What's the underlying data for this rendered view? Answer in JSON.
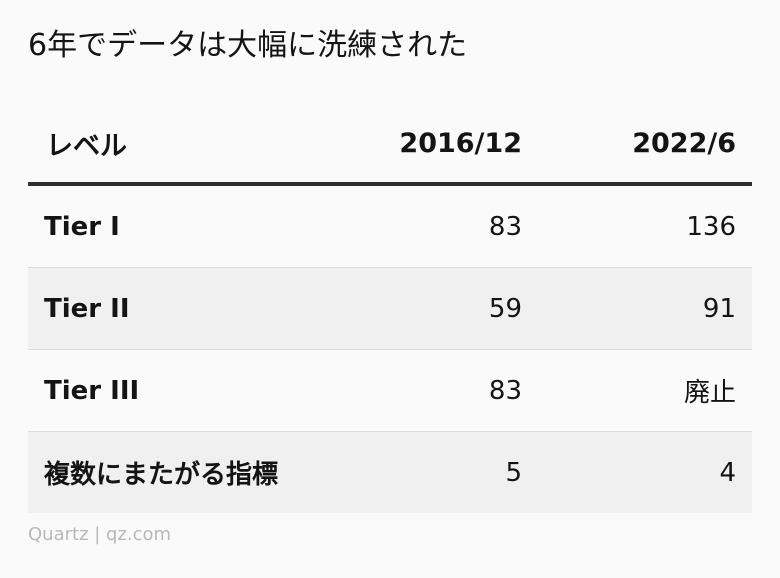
{
  "chart_data": {
    "type": "table",
    "title": "6年でデータは大幅に洗練された",
    "columns": [
      "レベル",
      "2016/12",
      "2022/6"
    ],
    "rows": [
      {
        "label": "Tier I",
        "v2016": "83",
        "v2022": "136"
      },
      {
        "label": "Tier II",
        "v2016": "59",
        "v2022": "91"
      },
      {
        "label": "Tier III",
        "v2016": "83",
        "v2022": "廃止"
      },
      {
        "label": "複数にまたがる指標",
        "v2016": "5",
        "v2022": "4"
      }
    ],
    "source": "Quartz | qz.com"
  }
}
